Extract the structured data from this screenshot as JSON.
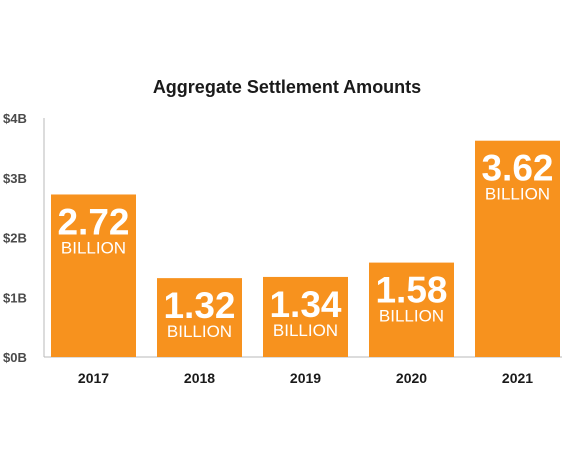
{
  "chart_data": {
    "type": "bar",
    "title": "Aggregate Settlement Amounts",
    "categories": [
      "2017",
      "2018",
      "2019",
      "2020",
      "2021"
    ],
    "values": [
      2.72,
      1.32,
      1.34,
      1.58,
      3.62
    ],
    "value_labels": [
      "2.72",
      "1.32",
      "1.34",
      "1.58",
      "3.62"
    ],
    "unit_label": "BILLION",
    "yticks": [
      0,
      1,
      2,
      3,
      4
    ],
    "ytick_labels": [
      "$0B",
      "$1B",
      "$2B",
      "$3B",
      "$4B"
    ],
    "ylim": [
      0,
      4
    ],
    "xlabel": "",
    "ylabel": "",
    "grid": false,
    "bar_color": "#F7921E"
  }
}
